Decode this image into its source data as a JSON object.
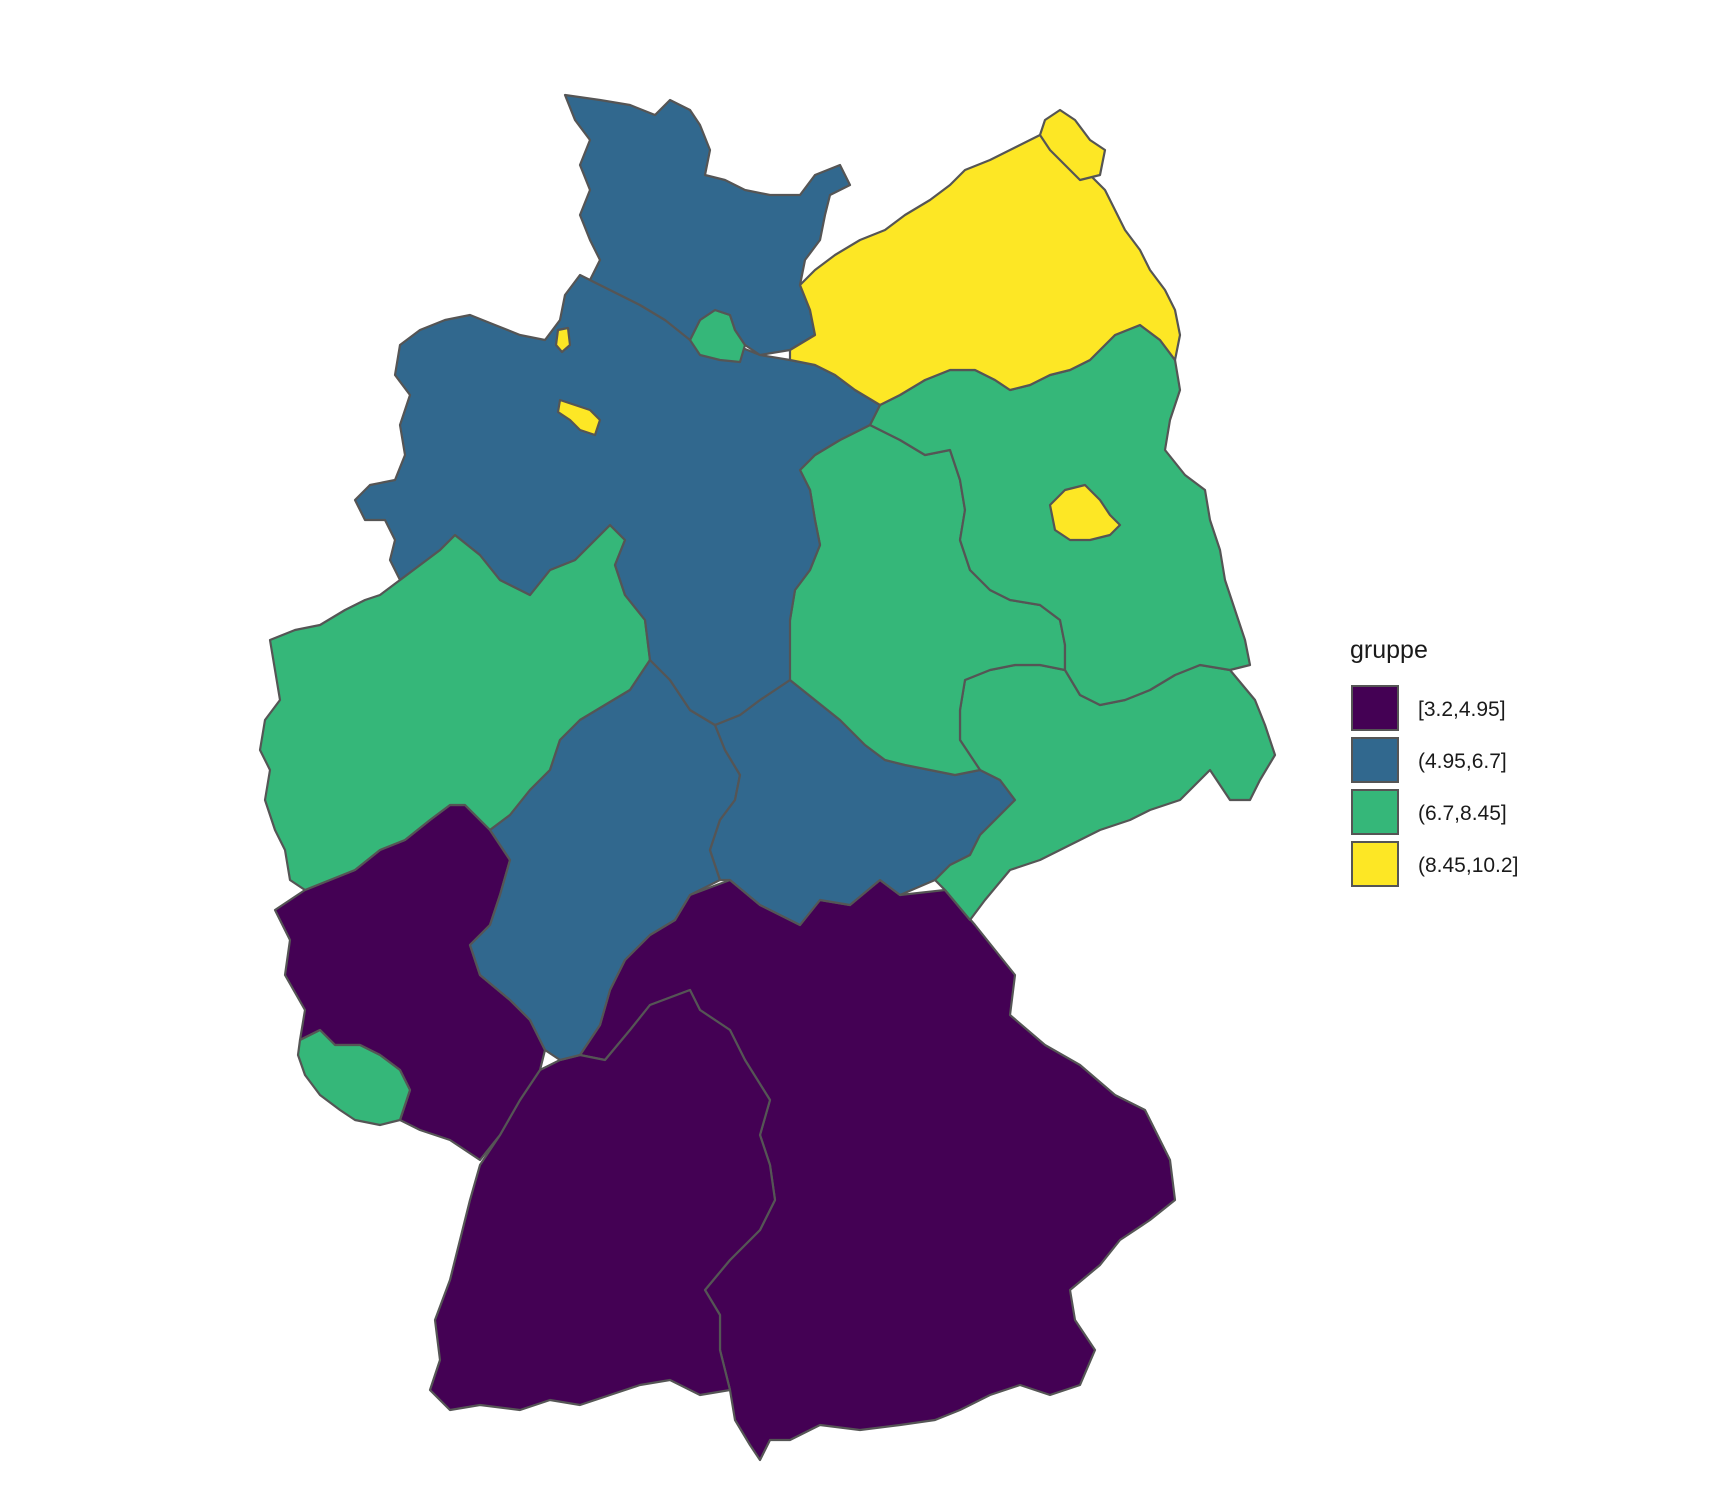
{
  "legend": {
    "title": "gruppe",
    "placement": "right",
    "items": [
      {
        "label": "[3.2,4.95]",
        "color": "#440154"
      },
      {
        "label": "(4.95,6.7]",
        "color": "#31688E"
      },
      {
        "label": "(6.7,8.45]",
        "color": "#35B779"
      },
      {
        "label": "(8.45,10.2]",
        "color": "#FDE725"
      }
    ]
  },
  "colors": {
    "outline": "#555555",
    "background": "#ffffff"
  },
  "map": {
    "type": "choropleth",
    "regions": [
      {
        "id": "schleswig-holstein",
        "group": 1
      },
      {
        "id": "hamburg",
        "group": 2
      },
      {
        "id": "mecklenburg-vorpommern",
        "group": 3
      },
      {
        "id": "niedersachsen",
        "group": 1
      },
      {
        "id": "bremen",
        "group": 3
      },
      {
        "id": "brandenburg",
        "group": 2
      },
      {
        "id": "berlin",
        "group": 3
      },
      {
        "id": "sachsen-anhalt",
        "group": 2
      },
      {
        "id": "nordrhein-westfalen",
        "group": 2
      },
      {
        "id": "hessen",
        "group": 1
      },
      {
        "id": "thueringen",
        "group": 1
      },
      {
        "id": "sachsen",
        "group": 2
      },
      {
        "id": "rheinland-pfalz",
        "group": 0
      },
      {
        "id": "saarland",
        "group": 2
      },
      {
        "id": "baden-wuerttemberg",
        "group": 0
      },
      {
        "id": "bayern",
        "group": 0
      }
    ]
  }
}
